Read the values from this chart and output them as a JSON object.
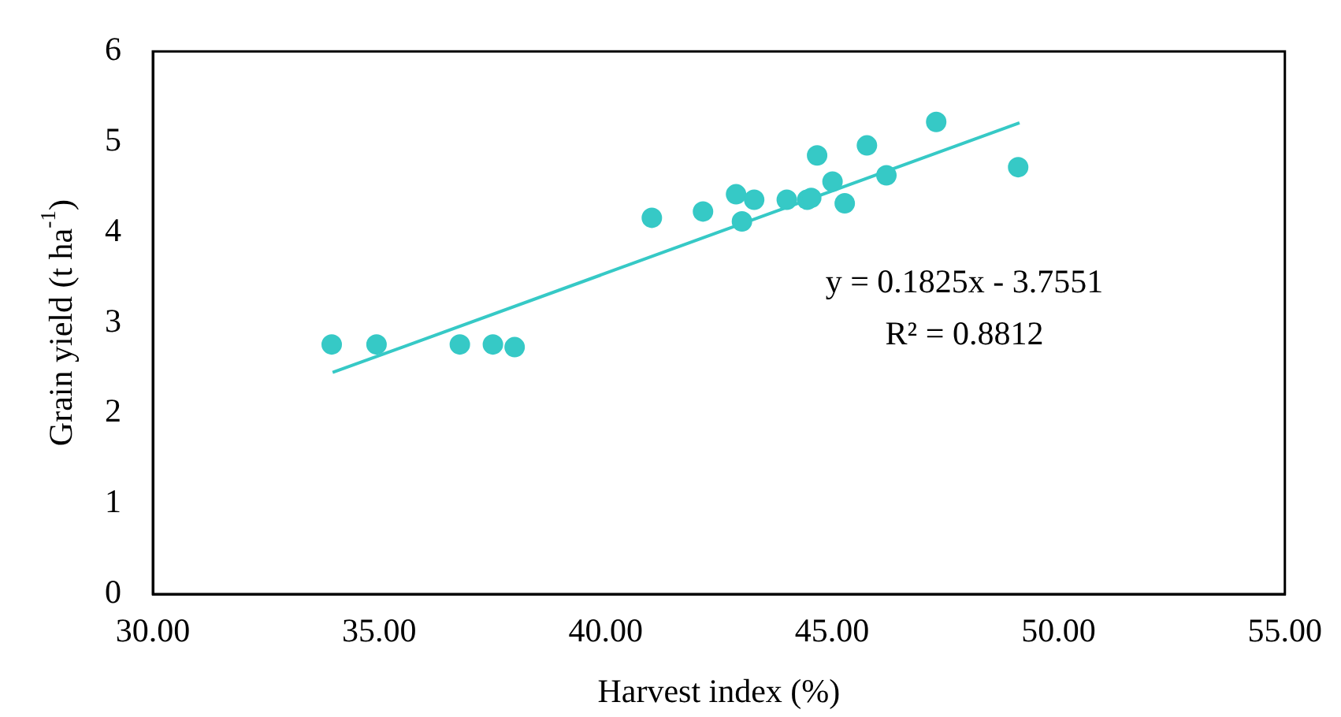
{
  "chart_data": {
    "type": "scatter",
    "xlabel": "Harvest index (%)",
    "ylabel": "Grain yield (t ha$^{-1}$)",
    "xlim": [
      30,
      55
    ],
    "xticks": [
      {
        "value": 30,
        "label": "30.00"
      },
      {
        "value": 35,
        "label": "35.00"
      },
      {
        "value": 40,
        "label": "40.00"
      },
      {
        "value": 45,
        "label": "45.00"
      },
      {
        "value": 50,
        "label": "50.00"
      },
      {
        "value": 55,
        "label": "55.00"
      }
    ],
    "ylim": [
      0,
      6
    ],
    "yticks": [
      0,
      1,
      2,
      3,
      4,
      5,
      6
    ],
    "grid": false,
    "legend": false,
    "series": [
      {
        "marker": "circle",
        "color": "#36c9c6",
        "x": [
          33.95,
          34.94,
          36.78,
          37.51,
          37.99,
          41.02,
          42.15,
          42.88,
          43.01,
          43.28,
          44.0,
          44.45,
          44.54,
          44.67,
          45.01,
          45.28,
          45.77,
          46.2,
          47.3,
          49.11
        ],
        "values": [
          2.76,
          2.76,
          2.76,
          2.76,
          2.73,
          4.16,
          4.23,
          4.42,
          4.12,
          4.36,
          4.36,
          4.36,
          4.38,
          4.85,
          4.56,
          4.32,
          4.96,
          4.63,
          5.22,
          4.72
        ]
      },
      {
        "type": "line",
        "color": "#36c9c6",
        "x": [
          33.97,
          49.14
        ],
        "values": [
          2.45,
          5.21
        ]
      }
    ],
    "annotations": [
      "y = 0.1825x - 3.7551",
      "R² = 0.8812"
    ]
  }
}
